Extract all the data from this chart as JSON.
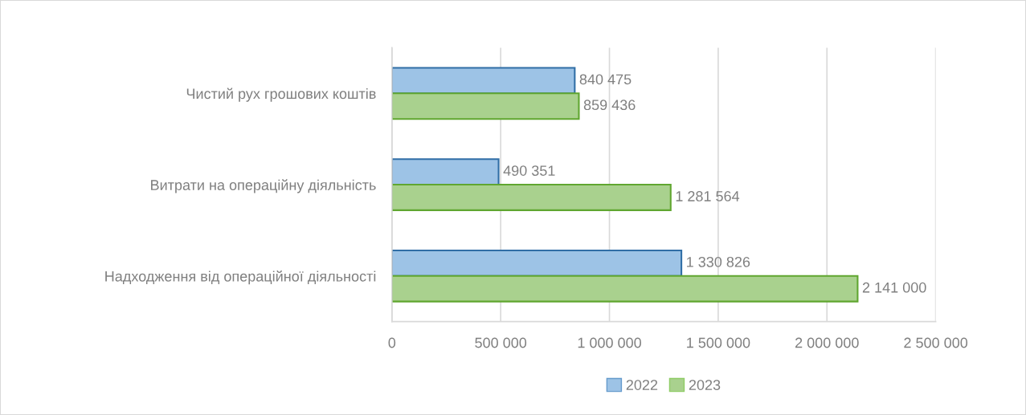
{
  "chart_data": {
    "type": "bar",
    "orientation": "horizontal",
    "categories": [
      "Чистий рух грошових коштів",
      "Витрати на операційну діяльність",
      "Надходження від операційної діяльності"
    ],
    "series": [
      {
        "name": "2022",
        "color": "#9dc3e6",
        "values": [
          840475,
          490351,
          1330826
        ],
        "value_labels": [
          "840 475",
          "490 351",
          "1 330 826"
        ]
      },
      {
        "name": "2023",
        "color": "#a9d18e",
        "values": [
          859436,
          1281564,
          2141000
        ],
        "value_labels": [
          "859 436",
          "1 281 564",
          "2 141 000"
        ]
      }
    ],
    "xlim": [
      0,
      2500000
    ],
    "xticks": [
      0,
      {
        "value": 500000,
        "label": "500 000"
      },
      {
        "value": 1000000,
        "label": "1 000 000"
      },
      {
        "value": 1500000,
        "label": "1 500 000"
      },
      {
        "value": 2000000,
        "label": "2 000 000"
      },
      {
        "value": 2500000,
        "label": "2 500 000"
      }
    ],
    "grid": "x",
    "legend": "bottom"
  }
}
